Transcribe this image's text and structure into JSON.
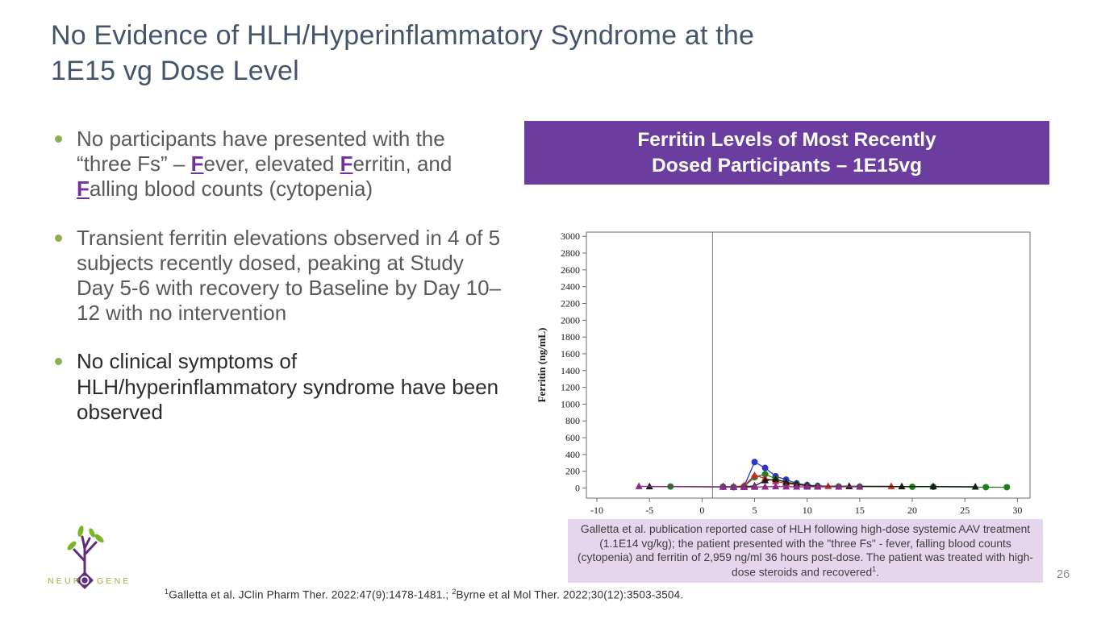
{
  "slide": {
    "title": "No Evidence of HLH/Hyperinflammatory Syndrome at the\n1E15 vg Dose Level",
    "page_number": "26"
  },
  "colors": {
    "title_text": "#44546a",
    "accent_purple": "#6b3d9e",
    "f_purple": "#7030a0",
    "bullet_green": "#8cb050",
    "note_background": "#e5d6ee"
  },
  "icons": {
    "bullet_marker": "green-circle-dot",
    "logo": "neurogene-tree-logo"
  },
  "bullets": [
    {
      "emphasis": false,
      "segments": [
        {
          "text": "No participants have presented with the “three Fs” – "
        },
        {
          "f": "F"
        },
        {
          "text": "ever, elevated "
        },
        {
          "f": "F"
        },
        {
          "text": "erritin, and "
        },
        {
          "f": "F"
        },
        {
          "text": "alling blood counts (cytopenia)"
        }
      ]
    },
    {
      "emphasis": false,
      "segments": [
        {
          "text": "Transient ferritin elevations observed in 4 of 5 subjects recently dosed, peaking at Study Day 5-6 with recovery to Baseline by Day 10–12 with no intervention"
        }
      ]
    },
    {
      "emphasis": true,
      "segments": [
        {
          "text": "No clinical symptoms of HLH/hyperinflammatory syndrome have been observed"
        }
      ]
    }
  ],
  "chart_header": {
    "label": "Ferritin Levels of Most Recently\nDosed Participants – 1E15vg"
  },
  "chart_data": {
    "type": "line",
    "title": "",
    "xlabel": "",
    "ylabel": "Ferritin (ng/mL)",
    "xlim": [
      -11,
      31.2
    ],
    "ylim": [
      -120,
      3050
    ],
    "xticks": [
      -10,
      -5,
      0,
      5,
      10,
      15,
      20,
      25,
      30
    ],
    "yticks": [
      0,
      200,
      400,
      600,
      800,
      1000,
      1200,
      1400,
      1600,
      1800,
      2000,
      2200,
      2400,
      2600,
      2800,
      3000
    ],
    "reference_line_x": 1,
    "grid": false,
    "legend": "none",
    "series": [
      {
        "name": "subject-1-blue",
        "color": "#2b35c7",
        "marker": "circle",
        "points": [
          [
            2,
            15
          ],
          [
            3,
            10
          ],
          [
            4,
            20
          ],
          [
            5,
            310
          ],
          [
            6,
            240
          ],
          [
            7,
            140
          ],
          [
            8,
            100
          ],
          [
            9,
            55
          ],
          [
            10,
            35
          ],
          [
            11,
            25
          ]
        ]
      },
      {
        "name": "subject-2-green",
        "color": "#1e7d1e",
        "marker": "circle",
        "points": [
          [
            -3,
            18
          ],
          [
            2,
            14
          ],
          [
            3,
            12
          ],
          [
            4,
            18
          ],
          [
            5,
            130
          ],
          [
            6,
            165
          ],
          [
            7,
            110
          ],
          [
            8,
            65
          ],
          [
            9,
            45
          ],
          [
            10,
            30
          ],
          [
            11,
            22
          ],
          [
            13,
            18
          ],
          [
            15,
            17
          ],
          [
            20,
            15
          ],
          [
            22,
            15
          ],
          [
            27,
            10
          ],
          [
            29,
            10
          ]
        ]
      },
      {
        "name": "subject-3-red",
        "color": "#d42a1e",
        "marker": "triangle",
        "points": [
          [
            2,
            18
          ],
          [
            3,
            15
          ],
          [
            4,
            28
          ],
          [
            5,
            150
          ],
          [
            6,
            115
          ],
          [
            7,
            80
          ],
          [
            8,
            55
          ],
          [
            9,
            40
          ],
          [
            10,
            28
          ],
          [
            12,
            22
          ],
          [
            14,
            20
          ],
          [
            18,
            20
          ]
        ]
      },
      {
        "name": "subject-4-black",
        "color": "#1a1a1a",
        "marker": "triangle",
        "points": [
          [
            -5,
            18
          ],
          [
            2,
            14
          ],
          [
            3,
            12
          ],
          [
            4,
            15
          ],
          [
            5,
            25
          ],
          [
            6,
            90
          ],
          [
            7,
            105
          ],
          [
            8,
            70
          ],
          [
            9,
            48
          ],
          [
            10,
            32
          ],
          [
            11,
            22
          ],
          [
            14,
            20
          ],
          [
            19,
            18
          ],
          [
            22,
            18
          ],
          [
            26,
            15
          ]
        ]
      },
      {
        "name": "subject-5-purple",
        "color": "#8a2b8a",
        "marker": "triangle",
        "points": [
          [
            -6,
            20
          ],
          [
            2,
            12
          ],
          [
            3,
            12
          ],
          [
            4,
            10
          ],
          [
            5,
            12
          ],
          [
            6,
            15
          ],
          [
            7,
            18
          ],
          [
            8,
            16
          ],
          [
            9,
            15
          ],
          [
            10,
            15
          ],
          [
            11,
            15
          ],
          [
            13,
            15
          ],
          [
            15,
            15
          ]
        ]
      }
    ]
  },
  "note_box": {
    "segments": [
      {
        "text": "Galletta et al. publication reported case of HLH following high-dose systemic AAV treatment (1.1E14 vg/kg); the patient presented with the \"three Fs\" - fever, falling blood counts (cytopenia) and ferritin of 2,959 ng/ml 36 hours post-dose. The patient was treated with high-dose steroids and recovered"
      },
      {
        "sup": "1"
      },
      {
        "text": "."
      }
    ]
  },
  "footer": {
    "segments": [
      {
        "sup": "1"
      },
      {
        "text": "Galletta et al. JClin Pharm Ther. 2022:47(9):1478-1481.; "
      },
      {
        "sup": "2"
      },
      {
        "text": "Byrne et al Mol Ther. 2022;30(12):3503-3504."
      }
    ]
  },
  "logo": {
    "wordmark_left": "NEUR",
    "wordmark_o": "O",
    "wordmark_right": "GENE"
  }
}
